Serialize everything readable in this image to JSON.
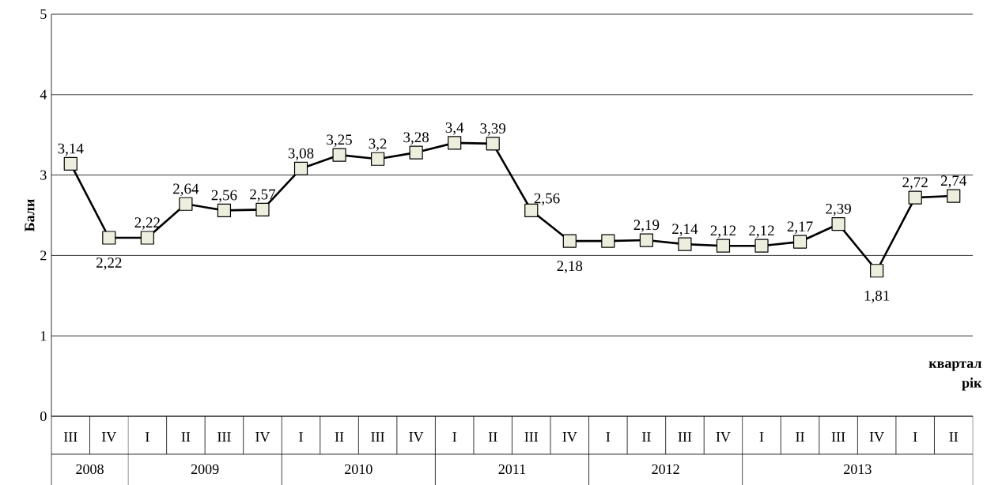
{
  "chart_data": {
    "type": "line",
    "ylabel": "Бали",
    "categories": [
      "III",
      "IV",
      "I",
      "II",
      "III",
      "IV",
      "I",
      "II",
      "III",
      "IV",
      "I",
      "II",
      "III",
      "IV",
      "I",
      "II",
      "III",
      "IV",
      "I",
      "II",
      "III",
      "IV",
      "I",
      "II"
    ],
    "values": [
      3.14,
      2.22,
      2.22,
      2.64,
      2.56,
      2.57,
      3.08,
      3.25,
      3.2,
      3.28,
      3.4,
      3.39,
      2.56,
      2.18,
      2.18,
      2.19,
      2.14,
      2.12,
      2.12,
      2.17,
      2.39,
      1.81,
      2.72,
      2.74
    ],
    "value_labels": [
      "3,14",
      "2,22",
      "2,22",
      "2,64",
      "2,56",
      "2,57",
      "3,08",
      "3,25",
      "3,2",
      "3,28",
      "3,4",
      "3,39",
      "2,56",
      "2,18",
      null,
      "2,19",
      "2,14",
      "2,12",
      "2,12",
      "2,17",
      "2,39",
      "1,81",
      "2,72",
      "2,74"
    ],
    "color": "#000000",
    "marker": "square",
    "line_style": "solid",
    "ylim": [
      0,
      5
    ],
    "yticks": [
      0,
      1,
      2,
      3,
      4,
      5
    ],
    "grid": "y",
    "annotations": [
      "2008",
      "2009",
      "2010",
      "2011",
      "2012",
      "2013",
      "квартал",
      "рік"
    ]
  }
}
